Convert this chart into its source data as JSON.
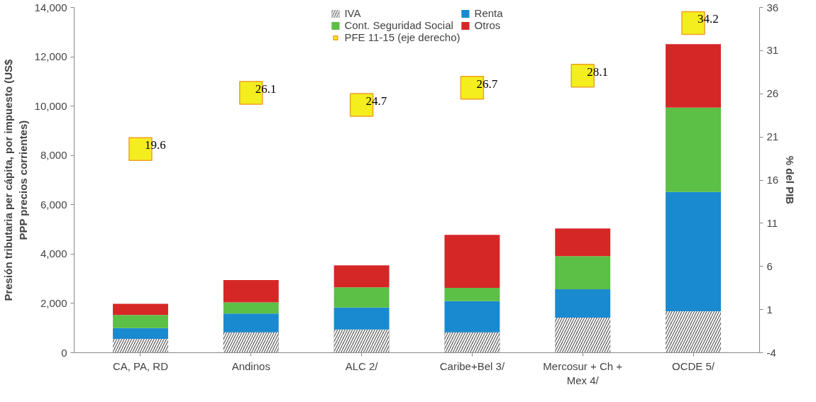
{
  "chart_data": {
    "type": "bar",
    "stacked": true,
    "categories": [
      "CA, PA, RD",
      "Andinos",
      "ALC 2/",
      "Caribe+Bel 3/",
      "Mercosur + Ch +\nMex 4/",
      "OCDE 5/"
    ],
    "ylabel": "Presión tributaria per cápita, por impuesto (US$\nPPP precios corrientes)",
    "y2label": "% del PIB",
    "ylim": [
      0,
      14000
    ],
    "yticks": [
      {
        "value": 0,
        "label": "0"
      },
      {
        "value": 2000,
        "label": "2,000"
      },
      {
        "value": 4000,
        "label": "4,000"
      },
      {
        "value": 6000,
        "label": "6,000"
      },
      {
        "value": 8000,
        "label": "8,000"
      },
      {
        "value": 10000,
        "label": "10,000"
      },
      {
        "value": 12000,
        "label": "12,000"
      },
      {
        "value": 14000,
        "label": "14,000"
      }
    ],
    "y2lim": [
      -4,
      36
    ],
    "y2ticks": [
      -4,
      1,
      6,
      11,
      16,
      21,
      26,
      31,
      36
    ],
    "grid": false,
    "legend": "top",
    "series": [
      {
        "name": "IVA",
        "color": "#555555",
        "values": [
          560,
          830,
          940,
          830,
          1420,
          1680
        ]
      },
      {
        "name": "Renta",
        "color": "#1a8ad0",
        "values": [
          440,
          760,
          890,
          1260,
          1150,
          4840
        ]
      },
      {
        "name": "Cont. Seguridad Social",
        "color": "#5cbf46",
        "values": [
          530,
          450,
          820,
          540,
          1350,
          3420
        ]
      },
      {
        "name": "Otros",
        "color": "#d62727",
        "values": [
          450,
          910,
          890,
          2150,
          1120,
          2570
        ]
      },
      {
        "name": "PFE 11-15 (eje derecho)",
        "color": "#f5ee1f",
        "type": "scatter",
        "axis": "y2",
        "marker": "square",
        "values": [
          19.6,
          26.1,
          24.7,
          26.7,
          28.1,
          34.2
        ],
        "value_labels": [
          "19.6",
          "26.1",
          "24.7",
          "26.7",
          "28.1",
          "34.2"
        ]
      }
    ]
  }
}
